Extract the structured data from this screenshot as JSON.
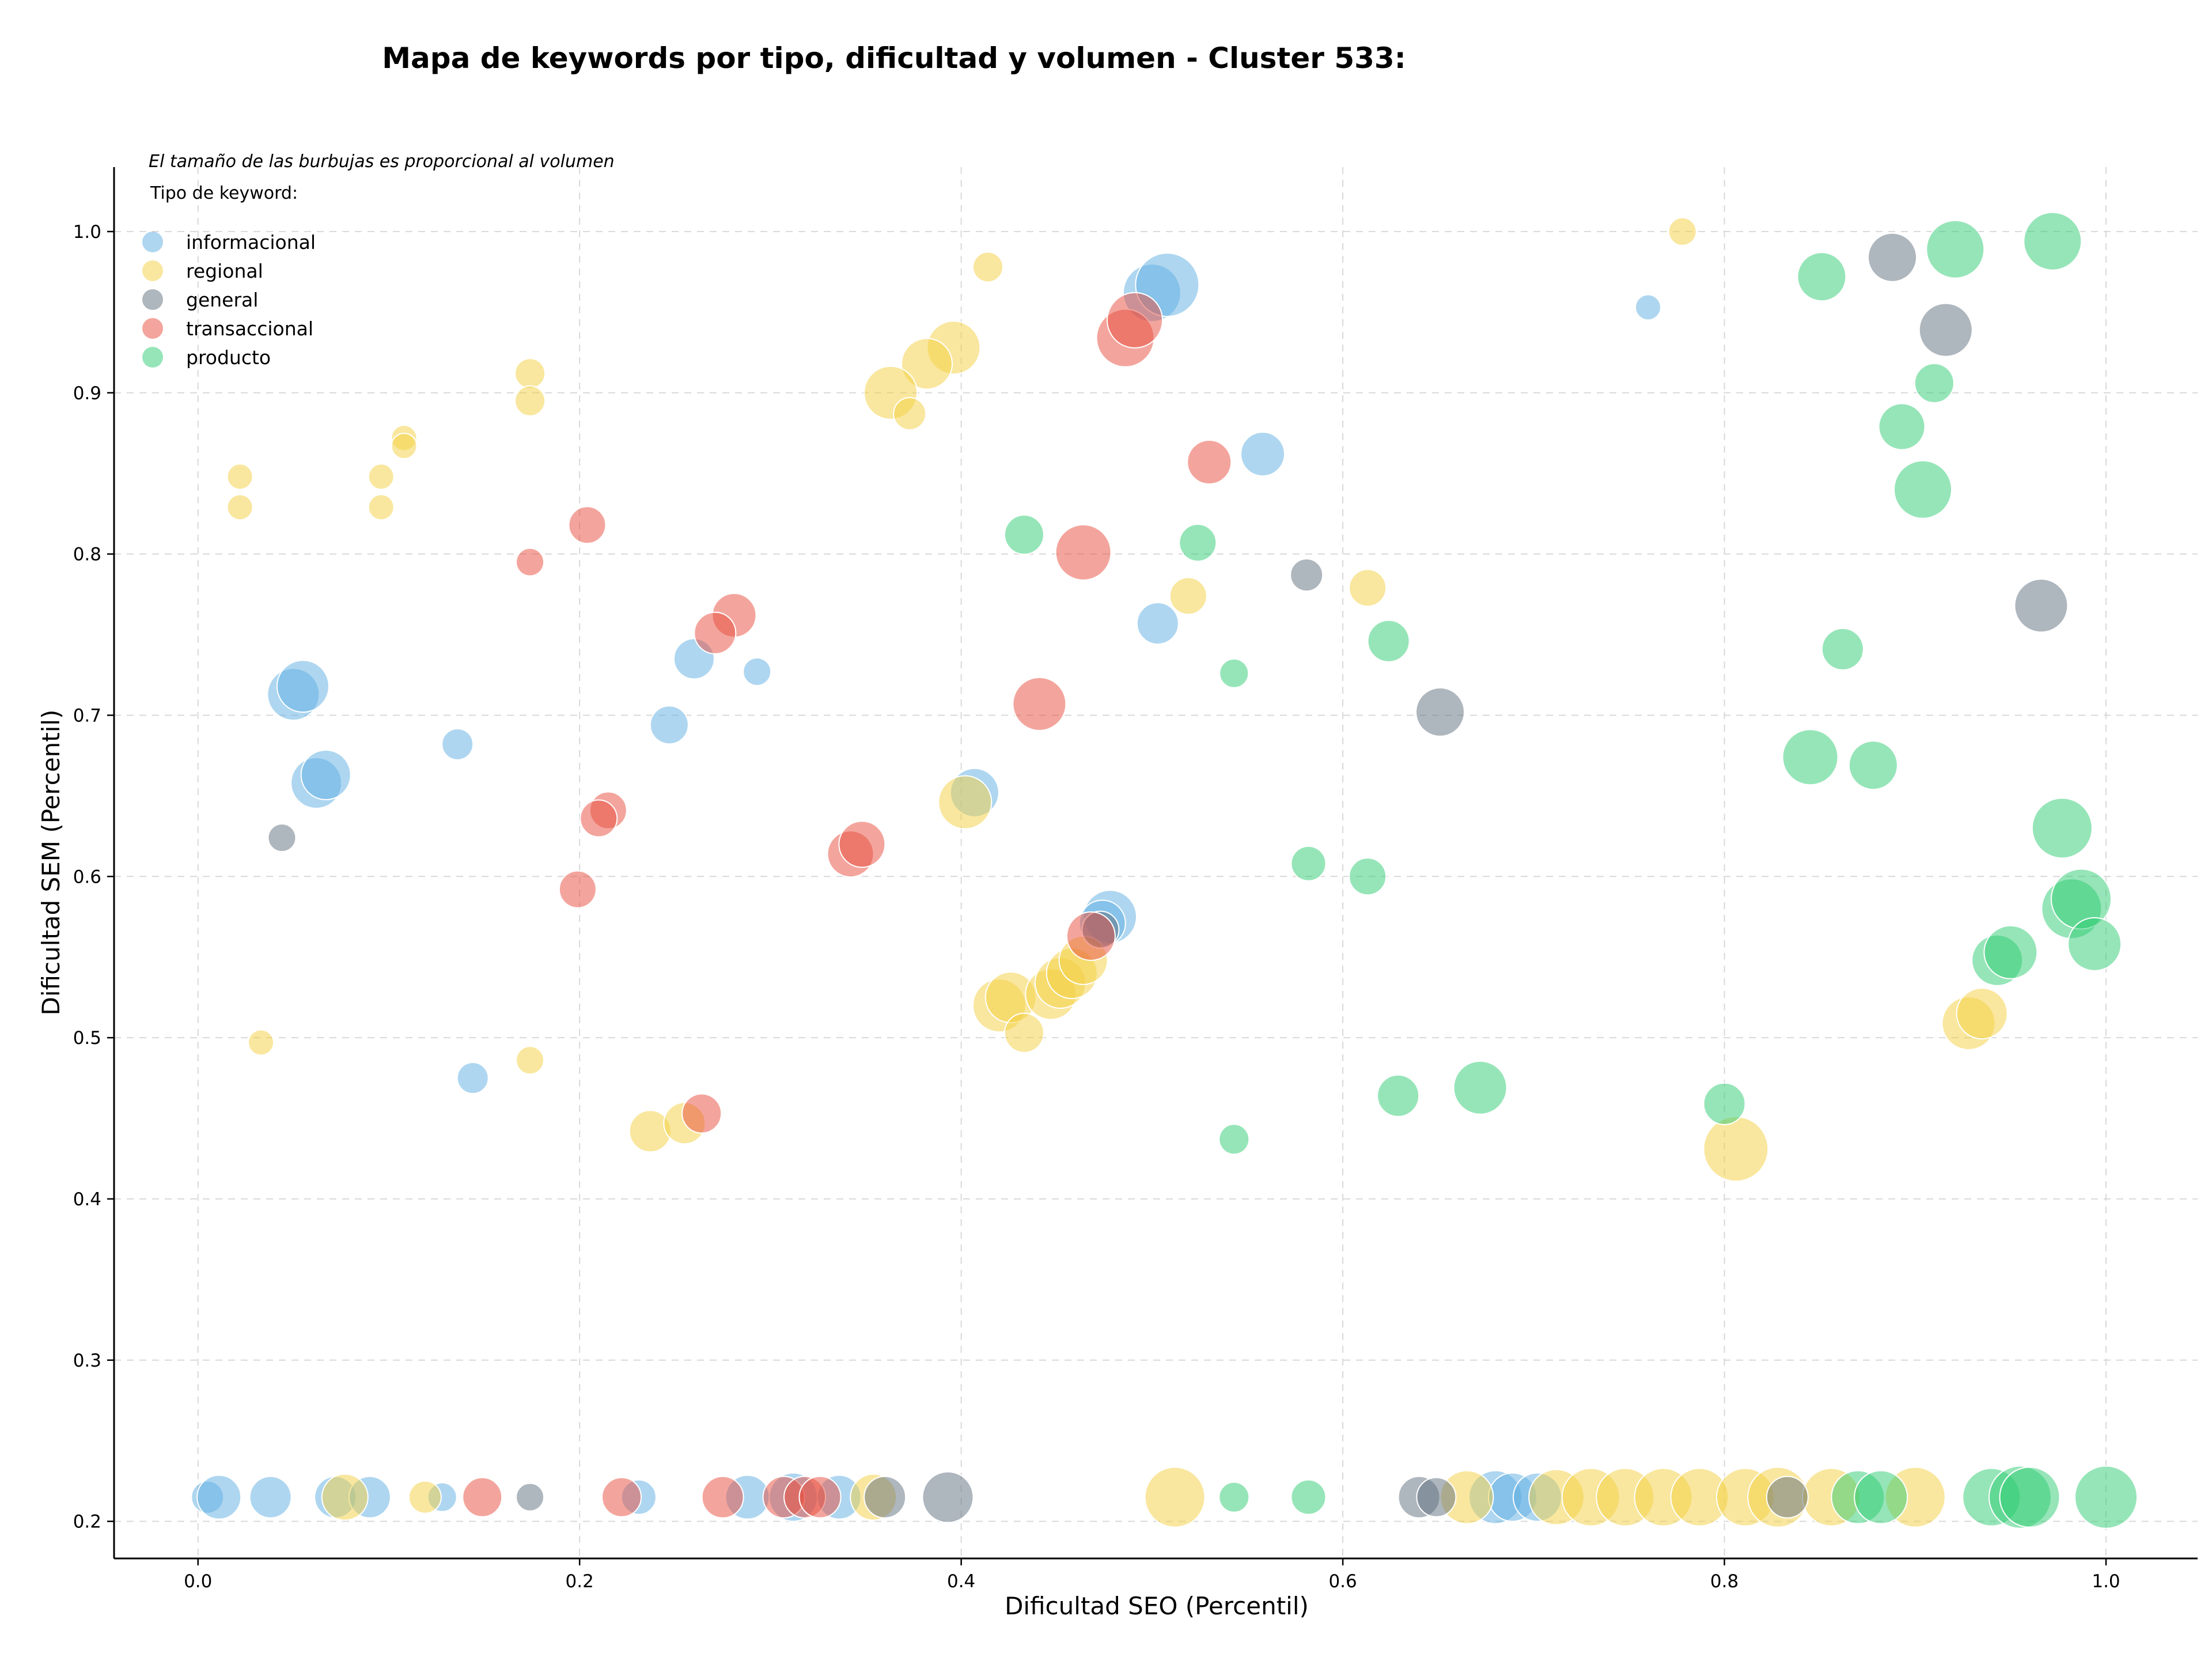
{
  "chart_data": {
    "type": "scatter",
    "title": "Mapa de keywords por tipo, dificultad y volumen - Cluster 533:",
    "xlabel": "Dificultad SEO (Percentil)",
    "ylabel": "Dificultad SEM (Percentil)",
    "annotation": "El tamaño de las burbujas es proporcional al volumen",
    "legend_title": "Tipo de keyword:",
    "legend_position": "top-left",
    "grid": true,
    "xlim": [
      -0.044,
      1.048
    ],
    "ylim": [
      0.177,
      1.04
    ],
    "xticks": [
      0.0,
      0.2,
      0.4,
      0.6,
      0.8,
      1.0
    ],
    "xtick_labels": [
      "0.0",
      "0.2",
      "0.4",
      "0.6",
      "0.8",
      "1.0"
    ],
    "yticks": [
      0.2,
      0.3,
      0.4,
      0.5,
      0.6,
      0.7,
      0.8,
      0.9,
      1.0
    ],
    "ytick_labels": [
      "0.2",
      "0.3",
      "0.4",
      "0.5",
      "0.6",
      "0.7",
      "0.8",
      "0.9",
      "1.0"
    ],
    "size_encoding": "volumen (relative)",
    "series": [
      {
        "name": "informacional",
        "color": "#5dade2",
        "points": [
          {
            "x": 0.76,
            "y": 0.953,
            "s": 22
          },
          {
            "x": 0.5,
            "y": 0.962,
            "s": 50
          },
          {
            "x": 0.508,
            "y": 0.967,
            "s": 55
          },
          {
            "x": 0.558,
            "y": 0.862,
            "s": 38
          },
          {
            "x": 0.503,
            "y": 0.757,
            "s": 36
          },
          {
            "x": 0.26,
            "y": 0.735,
            "s": 35
          },
          {
            "x": 0.293,
            "y": 0.727,
            "s": 24
          },
          {
            "x": 0.05,
            "y": 0.713,
            "s": 45
          },
          {
            "x": 0.055,
            "y": 0.718,
            "s": 45
          },
          {
            "x": 0.062,
            "y": 0.658,
            "s": 44
          },
          {
            "x": 0.067,
            "y": 0.663,
            "s": 43
          },
          {
            "x": 0.136,
            "y": 0.682,
            "s": 27
          },
          {
            "x": 0.247,
            "y": 0.694,
            "s": 33
          },
          {
            "x": 0.407,
            "y": 0.652,
            "s": 42
          },
          {
            "x": 0.478,
            "y": 0.575,
            "s": 46
          },
          {
            "x": 0.474,
            "y": 0.571,
            "s": 40
          },
          {
            "x": 0.144,
            "y": 0.475,
            "s": 27
          },
          {
            "x": 0.005,
            "y": 0.215,
            "s": 28
          },
          {
            "x": 0.011,
            "y": 0.215,
            "s": 38
          },
          {
            "x": 0.038,
            "y": 0.215,
            "s": 36
          },
          {
            "x": 0.072,
            "y": 0.215,
            "s": 36
          },
          {
            "x": 0.09,
            "y": 0.215,
            "s": 36
          },
          {
            "x": 0.128,
            "y": 0.215,
            "s": 25
          },
          {
            "x": 0.231,
            "y": 0.215,
            "s": 30
          },
          {
            "x": 0.288,
            "y": 0.215,
            "s": 38
          },
          {
            "x": 0.312,
            "y": 0.215,
            "s": 42
          },
          {
            "x": 0.336,
            "y": 0.215,
            "s": 38
          },
          {
            "x": 0.68,
            "y": 0.215,
            "s": 46
          },
          {
            "x": 0.689,
            "y": 0.215,
            "s": 42
          },
          {
            "x": 0.702,
            "y": 0.215,
            "s": 42
          }
        ]
      },
      {
        "name": "regional",
        "color": "#f4d03f",
        "points": [
          {
            "x": 0.778,
            "y": 1.0,
            "s": 24
          },
          {
            "x": 0.414,
            "y": 0.978,
            "s": 26
          },
          {
            "x": 0.396,
            "y": 0.928,
            "s": 46
          },
          {
            "x": 0.382,
            "y": 0.918,
            "s": 44
          },
          {
            "x": 0.363,
            "y": 0.9,
            "s": 46
          },
          {
            "x": 0.373,
            "y": 0.887,
            "s": 28
          },
          {
            "x": 0.174,
            "y": 0.912,
            "s": 26
          },
          {
            "x": 0.174,
            "y": 0.895,
            "s": 26
          },
          {
            "x": 0.108,
            "y": 0.872,
            "s": 22
          },
          {
            "x": 0.108,
            "y": 0.867,
            "s": 22
          },
          {
            "x": 0.096,
            "y": 0.848,
            "s": 22
          },
          {
            "x": 0.096,
            "y": 0.829,
            "s": 22
          },
          {
            "x": 0.022,
            "y": 0.848,
            "s": 22
          },
          {
            "x": 0.022,
            "y": 0.829,
            "s": 22
          },
          {
            "x": 0.613,
            "y": 0.779,
            "s": 32
          },
          {
            "x": 0.519,
            "y": 0.774,
            "s": 32
          },
          {
            "x": 0.402,
            "y": 0.646,
            "s": 46
          },
          {
            "x": 0.42,
            "y": 0.52,
            "s": 46
          },
          {
            "x": 0.426,
            "y": 0.525,
            "s": 44
          },
          {
            "x": 0.433,
            "y": 0.503,
            "s": 34
          },
          {
            "x": 0.447,
            "y": 0.527,
            "s": 44
          },
          {
            "x": 0.452,
            "y": 0.534,
            "s": 44
          },
          {
            "x": 0.458,
            "y": 0.54,
            "s": 44
          },
          {
            "x": 0.464,
            "y": 0.548,
            "s": 42
          },
          {
            "x": 0.033,
            "y": 0.497,
            "s": 22
          },
          {
            "x": 0.174,
            "y": 0.486,
            "s": 24
          },
          {
            "x": 0.237,
            "y": 0.442,
            "s": 36
          },
          {
            "x": 0.255,
            "y": 0.447,
            "s": 36
          },
          {
            "x": 0.806,
            "y": 0.431,
            "s": 56
          },
          {
            "x": 0.928,
            "y": 0.509,
            "s": 46
          },
          {
            "x": 0.935,
            "y": 0.515,
            "s": 44
          },
          {
            "x": 0.077,
            "y": 0.215,
            "s": 40
          },
          {
            "x": 0.119,
            "y": 0.215,
            "s": 28
          },
          {
            "x": 0.354,
            "y": 0.215,
            "s": 40
          },
          {
            "x": 0.512,
            "y": 0.215,
            "s": 52
          },
          {
            "x": 0.665,
            "y": 0.215,
            "s": 46
          },
          {
            "x": 0.712,
            "y": 0.215,
            "s": 48
          },
          {
            "x": 0.73,
            "y": 0.215,
            "s": 50
          },
          {
            "x": 0.748,
            "y": 0.215,
            "s": 50
          },
          {
            "x": 0.768,
            "y": 0.215,
            "s": 50
          },
          {
            "x": 0.787,
            "y": 0.215,
            "s": 50
          },
          {
            "x": 0.811,
            "y": 0.215,
            "s": 50
          },
          {
            "x": 0.828,
            "y": 0.215,
            "s": 52
          },
          {
            "x": 0.856,
            "y": 0.215,
            "s": 50
          },
          {
            "x": 0.9,
            "y": 0.215,
            "s": 52
          }
        ]
      },
      {
        "name": "general",
        "color": "#5d6d7e",
        "points": [
          {
            "x": 0.888,
            "y": 0.984,
            "s": 42
          },
          {
            "x": 0.916,
            "y": 0.939,
            "s": 46
          },
          {
            "x": 0.966,
            "y": 0.768,
            "s": 46
          },
          {
            "x": 0.651,
            "y": 0.702,
            "s": 42
          },
          {
            "x": 0.581,
            "y": 0.787,
            "s": 28
          },
          {
            "x": 0.044,
            "y": 0.624,
            "s": 24
          },
          {
            "x": 0.473,
            "y": 0.567,
            "s": 32
          },
          {
            "x": 0.174,
            "y": 0.215,
            "s": 24
          },
          {
            "x": 0.36,
            "y": 0.215,
            "s": 36
          },
          {
            "x": 0.393,
            "y": 0.215,
            "s": 44
          },
          {
            "x": 0.64,
            "y": 0.215,
            "s": 36
          },
          {
            "x": 0.649,
            "y": 0.215,
            "s": 34
          },
          {
            "x": 0.833,
            "y": 0.215,
            "s": 36
          }
        ]
      },
      {
        "name": "transaccional",
        "color": "#e74c3c",
        "points": [
          {
            "x": 0.486,
            "y": 0.934,
            "s": 50
          },
          {
            "x": 0.491,
            "y": 0.945,
            "s": 48
          },
          {
            "x": 0.53,
            "y": 0.857,
            "s": 38
          },
          {
            "x": 0.204,
            "y": 0.818,
            "s": 32
          },
          {
            "x": 0.174,
            "y": 0.795,
            "s": 24
          },
          {
            "x": 0.464,
            "y": 0.801,
            "s": 48
          },
          {
            "x": 0.281,
            "y": 0.762,
            "s": 38
          },
          {
            "x": 0.271,
            "y": 0.751,
            "s": 36
          },
          {
            "x": 0.441,
            "y": 0.707,
            "s": 46
          },
          {
            "x": 0.215,
            "y": 0.641,
            "s": 32
          },
          {
            "x": 0.21,
            "y": 0.636,
            "s": 32
          },
          {
            "x": 0.199,
            "y": 0.592,
            "s": 32
          },
          {
            "x": 0.342,
            "y": 0.614,
            "s": 40
          },
          {
            "x": 0.348,
            "y": 0.62,
            "s": 40
          },
          {
            "x": 0.468,
            "y": 0.563,
            "s": 42
          },
          {
            "x": 0.264,
            "y": 0.453,
            "s": 34
          },
          {
            "x": 0.149,
            "y": 0.215,
            "s": 34
          },
          {
            "x": 0.222,
            "y": 0.215,
            "s": 34
          },
          {
            "x": 0.275,
            "y": 0.215,
            "s": 36
          },
          {
            "x": 0.307,
            "y": 0.215,
            "s": 36
          },
          {
            "x": 0.318,
            "y": 0.215,
            "s": 36
          },
          {
            "x": 0.326,
            "y": 0.215,
            "s": 36
          }
        ]
      },
      {
        "name": "producto",
        "color": "#2ecc71",
        "points": [
          {
            "x": 0.972,
            "y": 0.994,
            "s": 50
          },
          {
            "x": 0.921,
            "y": 0.989,
            "s": 50
          },
          {
            "x": 0.851,
            "y": 0.972,
            "s": 42
          },
          {
            "x": 0.91,
            "y": 0.906,
            "s": 34
          },
          {
            "x": 0.893,
            "y": 0.879,
            "s": 40
          },
          {
            "x": 0.904,
            "y": 0.84,
            "s": 50
          },
          {
            "x": 0.862,
            "y": 0.741,
            "s": 36
          },
          {
            "x": 0.433,
            "y": 0.812,
            "s": 34
          },
          {
            "x": 0.524,
            "y": 0.807,
            "s": 32
          },
          {
            "x": 0.624,
            "y": 0.746,
            "s": 36
          },
          {
            "x": 0.543,
            "y": 0.726,
            "s": 25
          },
          {
            "x": 0.845,
            "y": 0.674,
            "s": 48
          },
          {
            "x": 0.878,
            "y": 0.669,
            "s": 42
          },
          {
            "x": 0.977,
            "y": 0.63,
            "s": 52
          },
          {
            "x": 0.582,
            "y": 0.608,
            "s": 30
          },
          {
            "x": 0.613,
            "y": 0.6,
            "s": 32
          },
          {
            "x": 0.982,
            "y": 0.58,
            "s": 52
          },
          {
            "x": 0.987,
            "y": 0.586,
            "s": 52
          },
          {
            "x": 0.994,
            "y": 0.558,
            "s": 46
          },
          {
            "x": 0.943,
            "y": 0.548,
            "s": 44
          },
          {
            "x": 0.95,
            "y": 0.553,
            "s": 46
          },
          {
            "x": 0.672,
            "y": 0.469,
            "s": 46
          },
          {
            "x": 0.629,
            "y": 0.464,
            "s": 36
          },
          {
            "x": 0.8,
            "y": 0.459,
            "s": 36
          },
          {
            "x": 0.543,
            "y": 0.437,
            "s": 26
          },
          {
            "x": 0.543,
            "y": 0.215,
            "s": 26
          },
          {
            "x": 0.582,
            "y": 0.215,
            "s": 30
          },
          {
            "x": 0.87,
            "y": 0.215,
            "s": 46
          },
          {
            "x": 0.882,
            "y": 0.215,
            "s": 46
          },
          {
            "x": 0.94,
            "y": 0.215,
            "s": 50
          },
          {
            "x": 0.955,
            "y": 0.215,
            "s": 54
          },
          {
            "x": 0.96,
            "y": 0.215,
            "s": 52
          },
          {
            "x": 1.0,
            "y": 0.215,
            "s": 54
          }
        ]
      }
    ]
  }
}
